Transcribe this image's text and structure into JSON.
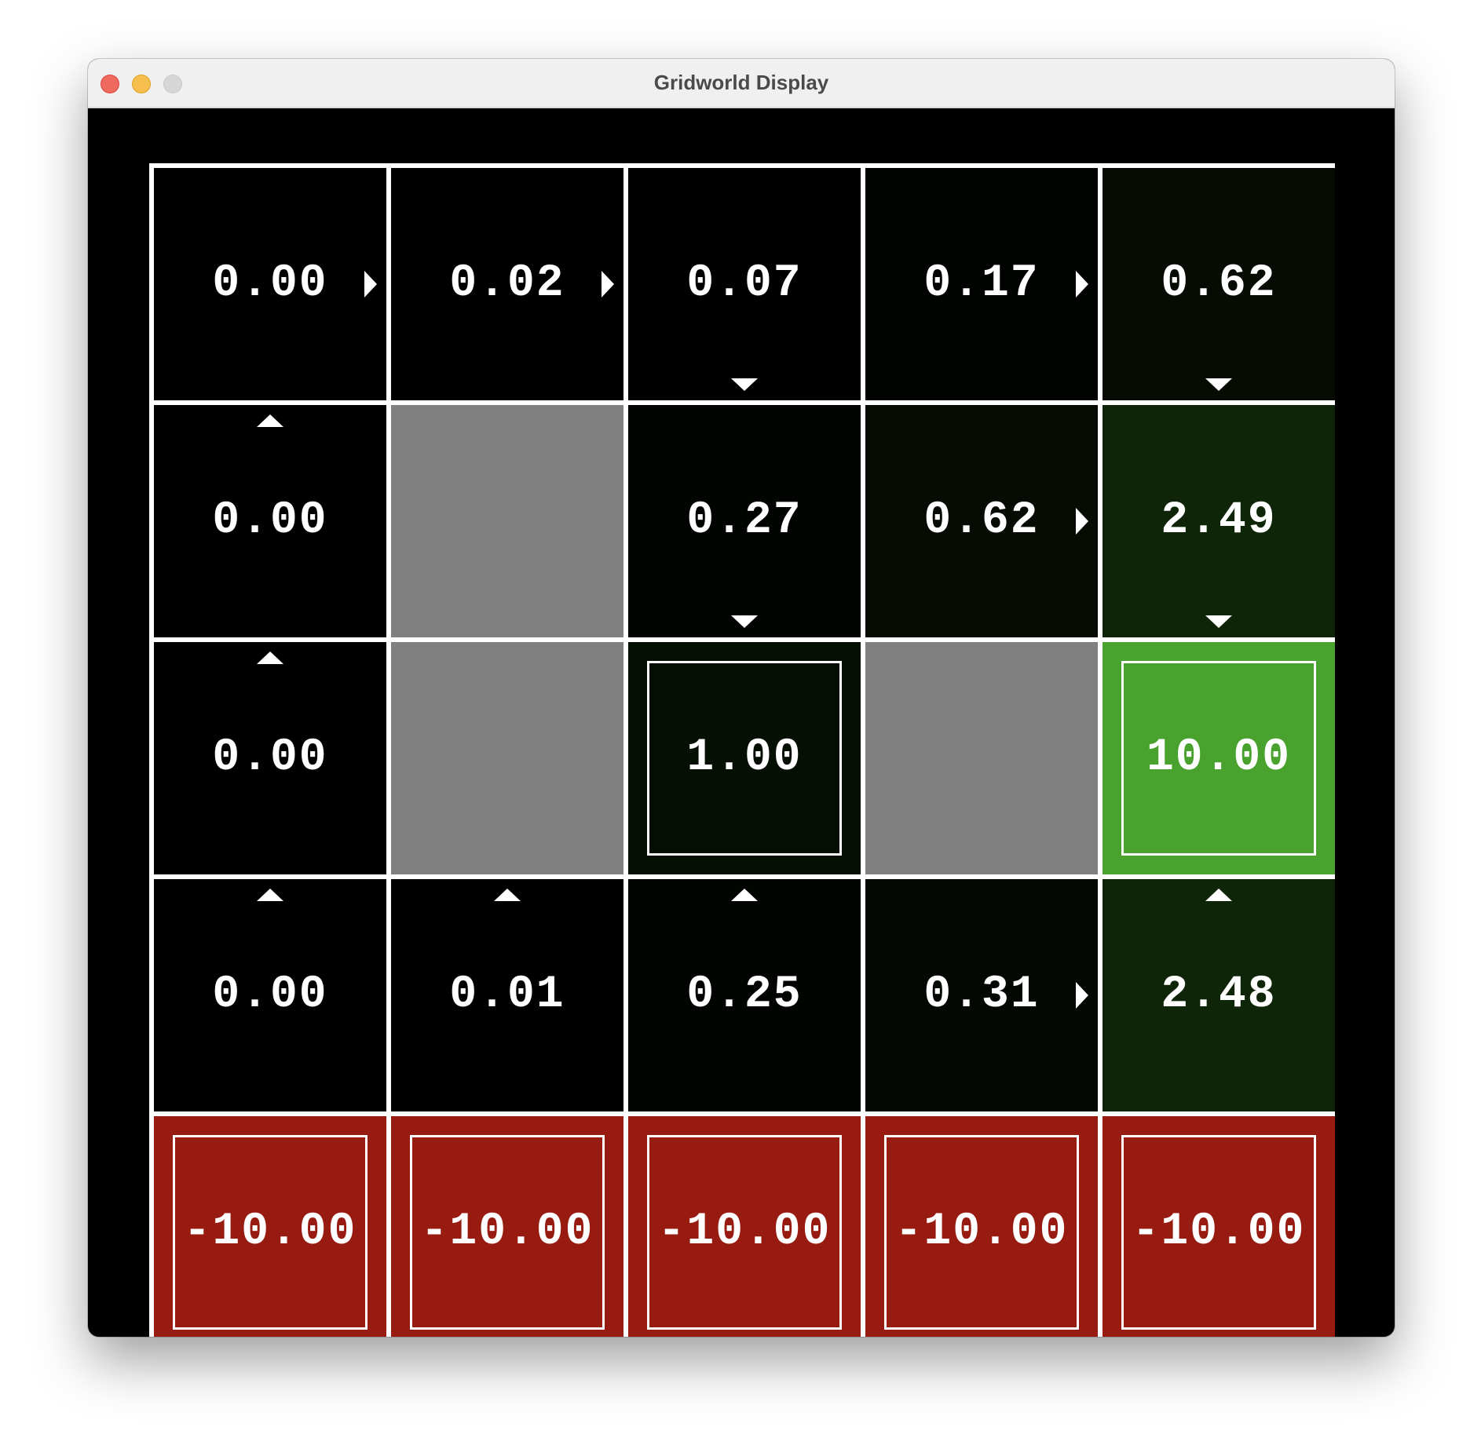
{
  "window": {
    "title": "Gridworld Display",
    "traffic_lights": [
      {
        "name": "close",
        "color": "#ee6a5f"
      },
      {
        "name": "minimize",
        "color": "#f5be4f"
      },
      {
        "name": "zoom",
        "color": "#d6d6d6"
      }
    ]
  },
  "colors": {
    "background": "#000000",
    "grid_lines": "#ffffff",
    "wall": "#808080",
    "negative_terminal": "#981b12",
    "text": "#ffffff"
  },
  "grid": {
    "rows": 5,
    "cols": 5,
    "cells": [
      [
        {
          "type": "state",
          "value": "0.00",
          "policy": "right",
          "color": "#000000"
        },
        {
          "type": "state",
          "value": "0.02",
          "policy": "right",
          "color": "#000000"
        },
        {
          "type": "state",
          "value": "0.07",
          "policy": "down",
          "color": "#000100"
        },
        {
          "type": "state",
          "value": "0.17",
          "policy": "right",
          "color": "#010300"
        },
        {
          "type": "state",
          "value": "0.62",
          "policy": "down",
          "color": "#060c04"
        }
      ],
      [
        {
          "type": "state",
          "value": "0.00",
          "policy": "up",
          "color": "#000000"
        },
        {
          "type": "wall"
        },
        {
          "type": "state",
          "value": "0.27",
          "policy": "down",
          "color": "#020402"
        },
        {
          "type": "state",
          "value": "0.62",
          "policy": "right",
          "color": "#060c04"
        },
        {
          "type": "state",
          "value": "2.49",
          "policy": "down",
          "color": "#0f2508"
        }
      ],
      [
        {
          "type": "state",
          "value": "0.00",
          "policy": "up",
          "color": "#000000"
        },
        {
          "type": "wall"
        },
        {
          "type": "terminal",
          "value": "1.00",
          "color": "#060f04"
        },
        {
          "type": "wall"
        },
        {
          "type": "terminal",
          "value": "10.00",
          "color": "#4aa22e"
        }
      ],
      [
        {
          "type": "state",
          "value": "0.00",
          "policy": "up",
          "color": "#000000"
        },
        {
          "type": "state",
          "value": "0.01",
          "policy": "up",
          "color": "#000000"
        },
        {
          "type": "state",
          "value": "0.25",
          "policy": "up",
          "color": "#020402"
        },
        {
          "type": "state",
          "value": "0.31",
          "policy": "right",
          "color": "#030803"
        },
        {
          "type": "state",
          "value": "2.48",
          "policy": "up",
          "color": "#0f2508"
        }
      ],
      [
        {
          "type": "terminal",
          "value": "-10.00",
          "color": "#981b12"
        },
        {
          "type": "terminal",
          "value": "-10.00",
          "color": "#981b12"
        },
        {
          "type": "terminal",
          "value": "-10.00",
          "color": "#981b12"
        },
        {
          "type": "terminal",
          "value": "-10.00",
          "color": "#981b12"
        },
        {
          "type": "terminal",
          "value": "-10.00",
          "color": "#981b12"
        }
      ]
    ]
  }
}
